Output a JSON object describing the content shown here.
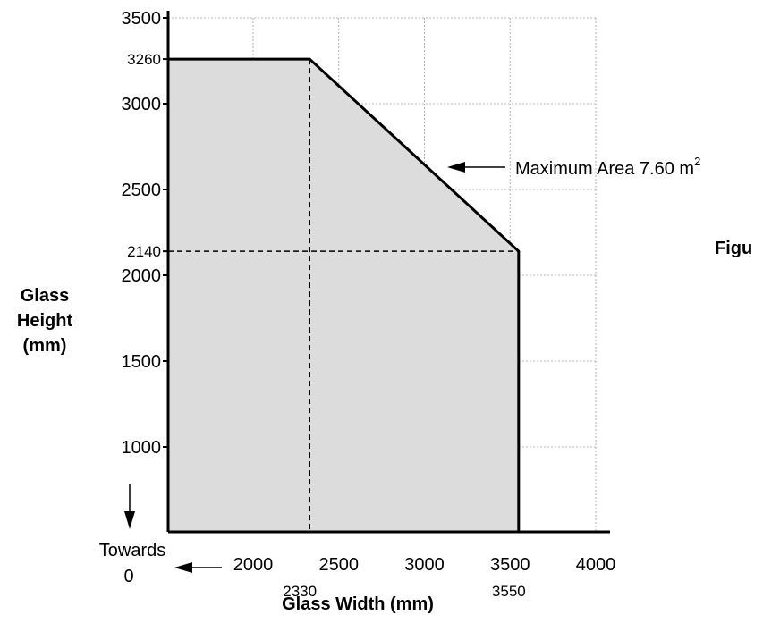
{
  "chart_data": {
    "type": "area",
    "xlabel": "Glass Width (mm)",
    "ylabel": [
      "Glass",
      "Height",
      "(mm)"
    ],
    "x_ticks": [
      2000,
      2500,
      3000,
      3500,
      4000
    ],
    "y_ticks": [
      1000,
      1500,
      2000,
      2500,
      3000,
      3500
    ],
    "xlim": [
      1500,
      4000
    ],
    "ylim": [
      500,
      3500
    ],
    "grid": true,
    "series": [
      {
        "x": [
          1500,
          2330,
          3550,
          3550
        ],
        "y": [
          3260,
          3260,
          2140,
          500
        ]
      }
    ],
    "reference_lines": [
      {
        "x": 2330,
        "y_from": 500,
        "y_to": 3260
      },
      {
        "y": 2140,
        "x_from": 1500,
        "x_to": 3550
      }
    ],
    "special_x_labels": [
      "2330",
      "3550"
    ],
    "special_y_labels": [
      "3260",
      "2140"
    ],
    "annotations": {
      "max_area_text": "Maximum Area 7.60 m",
      "max_area_superscript": "2",
      "towards_line1": "Towards",
      "towards_line2": "0",
      "figure_label": "Figu"
    },
    "colors": {
      "fill": "#dcdcdc",
      "line": "#000000",
      "grid": "#a0a0a0"
    }
  }
}
